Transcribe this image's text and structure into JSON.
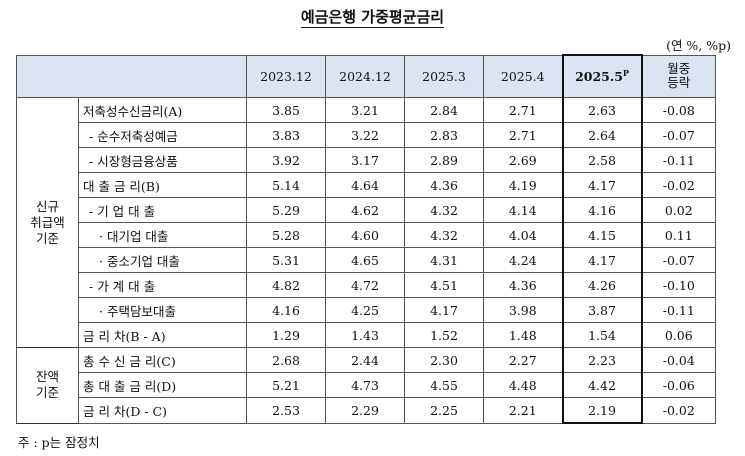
{
  "title": "예금은행 가중평균금리",
  "unit": "(연 %, %p)",
  "columns": [
    "2023.12",
    "2024.12",
    "2025.3",
    "2025.4",
    "2025.5",
    "월중\n등락"
  ],
  "highlight_column_sup": "P",
  "groups": {
    "new": "신규\n취급액\n기준",
    "balance": "잔액\n기준"
  },
  "rows": [
    {
      "label": "저축성수신금리(A)",
      "values": [
        "3.85",
        "3.21",
        "2.84",
        "2.71",
        "2.63",
        "-0.08"
      ]
    },
    {
      "label": "- 순수저축성예금",
      "values": [
        "3.83",
        "3.22",
        "2.83",
        "2.71",
        "2.64",
        "-0.07"
      ]
    },
    {
      "label": "- 시장형금융상품",
      "values": [
        "3.92",
        "3.17",
        "2.89",
        "2.69",
        "2.58",
        "-0.11"
      ]
    },
    {
      "label": "대 출 금 리(B)",
      "values": [
        "5.14",
        "4.64",
        "4.36",
        "4.19",
        "4.17",
        "-0.02"
      ]
    },
    {
      "label": "- 기 업 대 출",
      "values": [
        "5.29",
        "4.62",
        "4.32",
        "4.14",
        "4.16",
        "0.02"
      ]
    },
    {
      "label": "· 대기업 대출",
      "values": [
        "5.28",
        "4.60",
        "4.32",
        "4.04",
        "4.15",
        "0.11"
      ]
    },
    {
      "label": "· 중소기업 대출",
      "values": [
        "5.31",
        "4.65",
        "4.31",
        "4.24",
        "4.17",
        "-0.07"
      ]
    },
    {
      "label": "- 가 계 대 출",
      "values": [
        "4.82",
        "4.72",
        "4.51",
        "4.36",
        "4.26",
        "-0.10"
      ]
    },
    {
      "label": "· 주택담보대출",
      "values": [
        "4.16",
        "4.25",
        "4.17",
        "3.98",
        "3.87",
        "-0.11"
      ]
    },
    {
      "label": "금 리 차(B - A)",
      "values": [
        "1.29",
        "1.43",
        "1.52",
        "1.48",
        "1.54",
        "0.06"
      ]
    },
    {
      "label": "총 수 신 금 리(C)",
      "values": [
        "2.68",
        "2.44",
        "2.30",
        "2.27",
        "2.23",
        "-0.04"
      ]
    },
    {
      "label": "총 대 출 금 리(D)",
      "values": [
        "5.21",
        "4.73",
        "4.55",
        "4.48",
        "4.42",
        "-0.06"
      ]
    },
    {
      "label": "금 리 차(D - C)",
      "values": [
        "2.53",
        "2.29",
        "2.25",
        "2.21",
        "2.19",
        "-0.02"
      ]
    }
  ],
  "note": "주 : p는 잠정치"
}
